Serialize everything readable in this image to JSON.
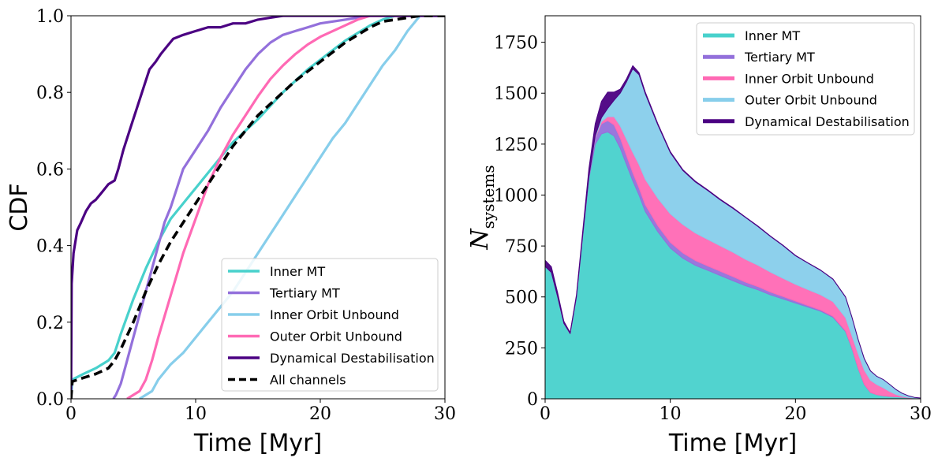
{
  "chart_data": [
    {
      "type": "line",
      "title": "",
      "xlabel": "Time [Myr]",
      "ylabel": "CDF",
      "xlim": [
        0,
        30
      ],
      "ylim": [
        0,
        1
      ],
      "xticks": [
        0,
        10,
        20,
        30
      ],
      "xtick_labels": [
        "0",
        "10",
        "20",
        "30"
      ],
      "yticks": [
        0,
        0.2,
        0.4,
        0.6,
        0.8,
        1.0
      ],
      "ytick_labels": [
        "0.0",
        "0.2",
        "0.4",
        "0.6",
        "0.8",
        "1.0"
      ],
      "legend_position": "lower-right",
      "series": [
        {
          "name": "Inner MT",
          "color": "#48d1cc",
          "dash": "solid",
          "x": [
            0,
            0.1,
            1,
            2,
            3,
            3.5,
            4,
            5,
            6,
            7,
            8,
            9,
            10,
            11,
            12,
            13,
            14,
            15,
            16,
            17,
            18,
            19,
            20,
            21,
            22,
            23,
            24,
            25,
            26,
            27,
            28,
            30
          ],
          "y": [
            0,
            0.05,
            0.065,
            0.08,
            0.1,
            0.12,
            0.17,
            0.26,
            0.34,
            0.41,
            0.47,
            0.51,
            0.55,
            0.59,
            0.63,
            0.67,
            0.7,
            0.73,
            0.765,
            0.8,
            0.83,
            0.86,
            0.885,
            0.91,
            0.935,
            0.955,
            0.975,
            0.99,
            1.0,
            1.0,
            1.0,
            1.0
          ]
        },
        {
          "name": "Tertiary MT",
          "color": "#9370db",
          "dash": "solid",
          "x": [
            3.4,
            3.6,
            4.0,
            4.5,
            5,
            5.5,
            6,
            6.5,
            7,
            7.5,
            8,
            8.5,
            9,
            10,
            11,
            12,
            13,
            14,
            15,
            16,
            17,
            18,
            19,
            20,
            21,
            22,
            23,
            24,
            25,
            30
          ],
          "y": [
            0,
            0.01,
            0.04,
            0.1,
            0.16,
            0.22,
            0.28,
            0.34,
            0.4,
            0.46,
            0.5,
            0.55,
            0.6,
            0.65,
            0.7,
            0.76,
            0.81,
            0.86,
            0.9,
            0.93,
            0.95,
            0.96,
            0.97,
            0.98,
            0.985,
            0.99,
            0.995,
            1.0,
            1.0,
            1.0
          ]
        },
        {
          "name": "Inner Orbit Unbound",
          "color": "#87ceeb",
          "dash": "solid",
          "x": [
            5.5,
            6.5,
            7,
            8,
            9,
            10,
            11,
            12,
            13,
            14,
            15,
            16,
            17,
            18,
            19,
            20,
            21,
            22,
            23,
            24,
            25,
            26,
            27,
            28,
            30
          ],
          "y": [
            0,
            0.02,
            0.05,
            0.09,
            0.12,
            0.16,
            0.2,
            0.24,
            0.28,
            0.33,
            0.38,
            0.43,
            0.48,
            0.53,
            0.58,
            0.63,
            0.68,
            0.72,
            0.77,
            0.82,
            0.87,
            0.91,
            0.96,
            1.0,
            1.0
          ]
        },
        {
          "name": "Outer Orbit Unbound",
          "color": "#ff69b4",
          "dash": "solid",
          "x": [
            4.5,
            5.5,
            6,
            6.5,
            7,
            8,
            9,
            10,
            11,
            12,
            13,
            14,
            15,
            16,
            17,
            18,
            19,
            20,
            21,
            22,
            23,
            24,
            25,
            30
          ],
          "y": [
            0,
            0.02,
            0.05,
            0.1,
            0.16,
            0.27,
            0.38,
            0.47,
            0.56,
            0.63,
            0.69,
            0.74,
            0.79,
            0.835,
            0.87,
            0.9,
            0.925,
            0.945,
            0.96,
            0.975,
            0.99,
            1.0,
            1.0,
            1.0
          ]
        },
        {
          "name": "Dynamical Destabilisation",
          "color": "#4b0082",
          "dash": "solid",
          "x": [
            0,
            0.05,
            0.2,
            0.5,
            0.8,
            1.2,
            1.6,
            2.0,
            2.5,
            3.0,
            3.5,
            3.8,
            4.2,
            4.8,
            5.3,
            5.8,
            6.3,
            6.8,
            7.2,
            7.7,
            8.2,
            9.0,
            10,
            11,
            12,
            13,
            14,
            15,
            16,
            17,
            18,
            20,
            22,
            24,
            26,
            30
          ],
          "y": [
            0,
            0.3,
            0.38,
            0.44,
            0.46,
            0.49,
            0.51,
            0.52,
            0.54,
            0.56,
            0.57,
            0.6,
            0.65,
            0.71,
            0.76,
            0.81,
            0.86,
            0.88,
            0.9,
            0.92,
            0.94,
            0.95,
            0.96,
            0.97,
            0.97,
            0.98,
            0.98,
            0.99,
            0.995,
            1.0,
            1.0,
            1.0,
            1.0,
            1.0,
            1.0,
            1.0
          ]
        },
        {
          "name": "All channels",
          "color": "#000000",
          "dash": "dashed",
          "x": [
            0,
            0.1,
            1,
            2,
            3,
            3.5,
            4,
            5,
            6,
            7,
            8,
            9,
            10,
            11,
            12,
            13,
            14,
            15,
            16,
            17,
            18,
            19,
            20,
            21,
            22,
            23,
            24,
            25,
            26,
            27,
            28,
            30
          ],
          "y": [
            0,
            0.045,
            0.055,
            0.065,
            0.08,
            0.1,
            0.13,
            0.2,
            0.28,
            0.35,
            0.41,
            0.46,
            0.51,
            0.56,
            0.61,
            0.66,
            0.7,
            0.74,
            0.77,
            0.8,
            0.83,
            0.855,
            0.88,
            0.905,
            0.93,
            0.95,
            0.97,
            0.985,
            0.99,
            0.995,
            1.0,
            1.0
          ]
        }
      ]
    },
    {
      "type": "area",
      "stacked": true,
      "title": "",
      "xlabel": "Time [Myr]",
      "ylabel_main": "N",
      "ylabel_sub": "systems",
      "xlim": [
        0,
        30
      ],
      "ylim": [
        0,
        1880
      ],
      "xticks": [
        0,
        10,
        20,
        30
      ],
      "xtick_labels": [
        "0",
        "10",
        "20",
        "30"
      ],
      "yticks": [
        0,
        250,
        500,
        750,
        1000,
        1250,
        1500,
        1750
      ],
      "ytick_labels": [
        "0",
        "250",
        "500",
        "750",
        "1000",
        "1250",
        "1500",
        "1750"
      ],
      "legend_position": "top-right",
      "x": [
        0,
        0.5,
        1,
        1.5,
        2,
        2.5,
        3,
        3.5,
        4,
        4.5,
        5,
        5.5,
        6,
        6.5,
        7,
        7.5,
        8,
        9,
        10,
        11,
        12,
        13,
        14,
        15,
        16,
        17,
        18,
        19,
        20,
        21,
        22,
        23,
        24,
        24.5,
        25,
        25.5,
        26,
        26.5,
        27,
        27.5,
        28,
        28.5,
        29,
        29.5,
        30
      ],
      "series": [
        {
          "name": "Inner MT",
          "color": "#48d1cc",
          "values": [
            650,
            620,
            500,
            370,
            320,
            500,
            800,
            1080,
            1250,
            1300,
            1310,
            1290,
            1230,
            1150,
            1070,
            1000,
            920,
            820,
            740,
            690,
            655,
            630,
            605,
            580,
            555,
            535,
            510,
            490,
            470,
            450,
            430,
            400,
            330,
            250,
            150,
            70,
            30,
            20,
            15,
            12,
            10,
            8,
            5,
            3,
            2
          ]
        },
        {
          "name": "Tertiary MT",
          "color": "#9370db",
          "values": [
            0,
            0,
            0,
            0,
            0,
            0,
            0,
            10,
            30,
            50,
            55,
            55,
            50,
            45,
            40,
            36,
            33,
            30,
            28,
            26,
            24,
            22,
            21,
            20,
            18,
            16,
            14,
            12,
            10,
            8,
            6,
            5,
            4,
            3,
            2,
            1,
            1,
            0,
            0,
            0,
            0,
            0,
            0,
            0,
            0
          ]
        },
        {
          "name": "Inner Orbit Unbound",
          "color": "#ff69b4",
          "values": [
            0,
            0,
            0,
            0,
            0,
            0,
            0,
            0,
            5,
            10,
            20,
            40,
            60,
            80,
            100,
            115,
            125,
            135,
            140,
            140,
            135,
            130,
            125,
            120,
            112,
            105,
            98,
            90,
            82,
            78,
            75,
            72,
            65,
            60,
            70,
            70,
            60,
            50,
            40,
            25,
            12,
            5,
            2,
            0,
            0
          ]
        },
        {
          "name": "Outer Orbit Unbound",
          "color": "#87ceeb",
          "values": [
            0,
            0,
            0,
            0,
            0,
            0,
            0,
            0,
            5,
            20,
            40,
            80,
            160,
            280,
            410,
            440,
            420,
            360,
            300,
            265,
            250,
            240,
            225,
            215,
            205,
            190,
            175,
            160,
            140,
            130,
            120,
            110,
            100,
            90,
            70,
            55,
            45,
            40,
            40,
            35,
            25,
            15,
            8,
            4,
            2
          ]
        },
        {
          "name": "Dynamical Destabilisation",
          "color": "#4b0082",
          "values": [
            30,
            28,
            20,
            10,
            5,
            10,
            20,
            40,
            60,
            80,
            80,
            40,
            20,
            15,
            15,
            10,
            8,
            6,
            5,
            4,
            4,
            3,
            3,
            3,
            2,
            2,
            2,
            2,
            2,
            1,
            1,
            1,
            1,
            1,
            1,
            1,
            1,
            0,
            0,
            0,
            0,
            0,
            0,
            0,
            0
          ]
        }
      ],
      "legend_entries": [
        {
          "name": "Inner MT",
          "color": "#48d1cc"
        },
        {
          "name": "Tertiary MT",
          "color": "#9370db"
        },
        {
          "name": "Inner Orbit Unbound",
          "color": "#ff69b4"
        },
        {
          "name": "Outer Orbit Unbound",
          "color": "#87ceeb"
        },
        {
          "name": "Dynamical Destabilisation",
          "color": "#4b0082"
        }
      ]
    }
  ]
}
